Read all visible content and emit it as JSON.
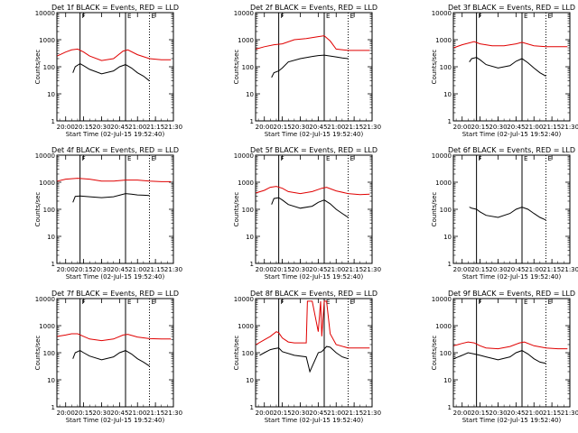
{
  "layout": {
    "rows": 3,
    "cols": 3
  },
  "colors": {
    "events": "#000000",
    "lld": "#e00000",
    "axes": "#000000",
    "background": "#ffffff"
  },
  "shared_axes": {
    "xlabel": "Start Time (02-Jul-15 19:52:40)",
    "ylabel": "Counts/sec",
    "x_tick_labels": [
      "20:00",
      "20:15",
      "20:30",
      "20:45",
      "21:00",
      "21:15",
      "21:30"
    ],
    "y_tick_labels": [
      "1",
      "10",
      "100",
      "1000",
      "10000"
    ],
    "y_scale": "log"
  },
  "chart_data": [
    {
      "type": "line",
      "title": "Det 1f BLACK = Events, RED = LLD",
      "xlim": [
        "19:52:40",
        "21:30:00"
      ],
      "ylim": [
        1,
        10000
      ],
      "markers": [
        {
          "time": "20:12",
          "label": "F",
          "style": "solid"
        },
        {
          "time": "20:50",
          "label": "E",
          "style": "solid"
        },
        {
          "time": "21:10",
          "label": "E",
          "style": "dotted"
        }
      ],
      "series": [
        {
          "name": "Events",
          "color": "#000000",
          "x": [
            "20:06",
            "20:08",
            "20:12",
            "20:15",
            "20:20",
            "20:30",
            "20:40",
            "20:45",
            "20:50",
            "20:55",
            "21:00",
            "21:05",
            "21:10"
          ],
          "y": [
            60,
            100,
            130,
            110,
            80,
            55,
            70,
            100,
            120,
            90,
            60,
            45,
            30
          ]
        },
        {
          "name": "LLD",
          "color": "#e00000",
          "x": [
            "19:53",
            "20:00",
            "20:05",
            "20:10",
            "20:15",
            "20:20",
            "20:30",
            "20:40",
            "20:48",
            "20:52",
            "21:00",
            "21:10",
            "21:20",
            "21:28"
          ],
          "y": [
            250,
            350,
            420,
            450,
            350,
            250,
            170,
            200,
            380,
            420,
            280,
            200,
            180,
            180
          ]
        }
      ]
    },
    {
      "type": "line",
      "title": "Det 2f BLACK = Events, RED = LLD",
      "xlim": [
        "19:52:40",
        "21:30:00"
      ],
      "ylim": [
        1,
        10000
      ],
      "markers": [
        {
          "time": "20:12",
          "label": "F",
          "style": "solid"
        },
        {
          "time": "20:50",
          "label": "E",
          "style": "solid"
        },
        {
          "time": "21:10",
          "label": "E",
          "style": "dotted"
        }
      ],
      "series": [
        {
          "name": "Events",
          "color": "#000000",
          "x": [
            "20:06",
            "20:08",
            "20:12",
            "20:15",
            "20:20",
            "20:30",
            "20:40",
            "20:45",
            "20:50",
            "20:55",
            "21:00",
            "21:05",
            "21:10"
          ],
          "y": [
            40,
            60,
            70,
            90,
            150,
            200,
            240,
            260,
            270,
            250,
            230,
            210,
            200
          ]
        },
        {
          "name": "LLD",
          "color": "#e00000",
          "x": [
            "19:53",
            "20:00",
            "20:08",
            "20:15",
            "20:25",
            "20:35",
            "20:45",
            "20:50",
            "20:55",
            "21:00",
            "21:10",
            "21:20",
            "21:28"
          ],
          "y": [
            450,
            550,
            650,
            700,
            1000,
            1100,
            1300,
            1400,
            900,
            450,
            400,
            400,
            400
          ]
        }
      ]
    },
    {
      "type": "line",
      "title": "Det 3f BLACK = Events, RED = LLD",
      "xlim": [
        "19:52:40",
        "21:30:00"
      ],
      "ylim": [
        1,
        10000
      ],
      "markers": [
        {
          "time": "20:12",
          "label": "F",
          "style": "solid"
        },
        {
          "time": "20:50",
          "label": "E",
          "style": "solid"
        },
        {
          "time": "21:10",
          "label": "E",
          "style": "dotted"
        }
      ],
      "series": [
        {
          "name": "Events",
          "color": "#000000",
          "x": [
            "20:06",
            "20:08",
            "20:12",
            "20:15",
            "20:20",
            "20:30",
            "20:40",
            "20:45",
            "20:50",
            "20:55",
            "21:00",
            "21:05",
            "21:10"
          ],
          "y": [
            150,
            200,
            220,
            180,
            120,
            90,
            110,
            160,
            200,
            140,
            90,
            60,
            45
          ]
        },
        {
          "name": "LLD",
          "color": "#e00000",
          "x": [
            "19:53",
            "20:00",
            "20:10",
            "20:15",
            "20:25",
            "20:35",
            "20:45",
            "20:50",
            "21:00",
            "21:10",
            "21:20",
            "21:28"
          ],
          "y": [
            500,
            650,
            850,
            700,
            600,
            600,
            700,
            800,
            600,
            550,
            550,
            550
          ]
        }
      ]
    },
    {
      "type": "line",
      "title": "Det 4f BLACK = Events, RED = LLD",
      "xlim": [
        "19:52:40",
        "21:30:00"
      ],
      "ylim": [
        1,
        10000
      ],
      "markers": [
        {
          "time": "20:12",
          "label": "F",
          "style": "solid"
        },
        {
          "time": "20:50",
          "label": "E",
          "style": "solid"
        },
        {
          "time": "21:10",
          "label": "E",
          "style": "dotted"
        }
      ],
      "series": [
        {
          "name": "Events",
          "color": "#000000",
          "x": [
            "20:06",
            "20:08",
            "20:12",
            "20:20",
            "20:30",
            "20:40",
            "20:45",
            "20:50",
            "20:55",
            "21:00",
            "21:05",
            "21:10"
          ],
          "y": [
            180,
            300,
            310,
            290,
            270,
            290,
            330,
            380,
            360,
            340,
            330,
            320
          ]
        },
        {
          "name": "LLD",
          "color": "#e00000",
          "x": [
            "19:53",
            "20:00",
            "20:10",
            "20:20",
            "20:30",
            "20:40",
            "20:50",
            "21:00",
            "21:10",
            "21:20",
            "21:28"
          ],
          "y": [
            1100,
            1300,
            1400,
            1300,
            1100,
            1100,
            1200,
            1200,
            1100,
            1050,
            1050
          ]
        }
      ]
    },
    {
      "type": "line",
      "title": "Det 5f BLACK = Events, RED = LLD",
      "xlim": [
        "19:52:40",
        "21:30:00"
      ],
      "ylim": [
        1,
        10000
      ],
      "markers": [
        {
          "time": "20:12",
          "label": "F",
          "style": "solid"
        },
        {
          "time": "20:50",
          "label": "E",
          "style": "solid"
        },
        {
          "time": "21:10",
          "label": "E",
          "style": "dotted"
        }
      ],
      "series": [
        {
          "name": "Events",
          "color": "#000000",
          "x": [
            "20:06",
            "20:08",
            "20:12",
            "20:15",
            "20:20",
            "20:30",
            "20:40",
            "20:45",
            "20:50",
            "20:55",
            "21:00",
            "21:05",
            "21:10"
          ],
          "y": [
            150,
            250,
            270,
            220,
            150,
            110,
            130,
            180,
            220,
            160,
            100,
            70,
            50
          ]
        },
        {
          "name": "LLD",
          "color": "#e00000",
          "x": [
            "19:53",
            "20:00",
            "20:05",
            "20:10",
            "20:15",
            "20:20",
            "20:30",
            "20:40",
            "20:48",
            "20:52",
            "21:00",
            "21:10",
            "21:20",
            "21:28"
          ],
          "y": [
            400,
            500,
            650,
            700,
            600,
            450,
            380,
            450,
            600,
            650,
            480,
            380,
            350,
            360
          ]
        }
      ]
    },
    {
      "type": "line",
      "title": "Det 6f BLACK = Events, RED = LLD",
      "xlim": [
        "19:52:40",
        "21:30:00"
      ],
      "ylim": [
        1,
        10000
      ],
      "markers": [
        {
          "time": "20:12",
          "label": "F",
          "style": "solid"
        },
        {
          "time": "20:50",
          "label": "E",
          "style": "solid"
        },
        {
          "time": "21:10",
          "label": "E",
          "style": "dotted"
        }
      ],
      "series": [
        {
          "name": "Events",
          "color": "#000000",
          "x": [
            "20:06",
            "20:08",
            "20:12",
            "20:15",
            "20:20",
            "20:30",
            "20:40",
            "20:45",
            "20:50",
            "20:55",
            "21:00",
            "21:05",
            "21:10"
          ],
          "y": [
            120,
            110,
            100,
            80,
            60,
            50,
            70,
            100,
            120,
            100,
            70,
            50,
            40
          ]
        }
      ]
    },
    {
      "type": "line",
      "title": "Det 7f BLACK = Events, RED = LLD",
      "xlim": [
        "19:52:40",
        "21:30:00"
      ],
      "ylim": [
        1,
        10000
      ],
      "markers": [
        {
          "time": "20:12",
          "label": "F",
          "style": "solid"
        },
        {
          "time": "20:50",
          "label": "E",
          "style": "solid"
        },
        {
          "time": "21:10",
          "label": "E",
          "style": "dotted"
        }
      ],
      "series": [
        {
          "name": "Events",
          "color": "#000000",
          "x": [
            "20:06",
            "20:08",
            "20:12",
            "20:15",
            "20:20",
            "20:30",
            "20:40",
            "20:45",
            "20:50",
            "20:55",
            "21:00",
            "21:05",
            "21:10"
          ],
          "y": [
            60,
            100,
            120,
            100,
            75,
            55,
            70,
            100,
            120,
            90,
            60,
            45,
            32
          ]
        },
        {
          "name": "LLD",
          "color": "#e00000",
          "x": [
            "19:53",
            "20:00",
            "20:05",
            "20:10",
            "20:15",
            "20:20",
            "20:30",
            "20:40",
            "20:48",
            "20:52",
            "21:00",
            "21:10",
            "21:20",
            "21:28"
          ],
          "y": [
            400,
            450,
            500,
            500,
            400,
            320,
            280,
            320,
            450,
            480,
            380,
            330,
            320,
            320
          ]
        }
      ]
    },
    {
      "type": "line",
      "title": "Det 8f BLACK = Events, RED = LLD",
      "xlim": [
        "19:52:40",
        "21:30:00"
      ],
      "ylim": [
        1,
        10000
      ],
      "markers": [
        {
          "time": "20:12",
          "label": "F",
          "style": "solid"
        },
        {
          "time": "20:50",
          "label": "E",
          "style": "solid"
        },
        {
          "time": "21:10",
          "label": "E",
          "style": "dotted"
        }
      ],
      "series": [
        {
          "name": "Events",
          "color": "#000000",
          "x": [
            "19:56",
            "20:00",
            "20:05",
            "20:08",
            "20:12",
            "20:15",
            "20:25",
            "20:35",
            "20:38",
            "20:45",
            "20:48",
            "20:52",
            "20:55",
            "21:00",
            "21:05",
            "21:10"
          ],
          "y": [
            80,
            100,
            130,
            140,
            150,
            110,
            80,
            70,
            20,
            100,
            110,
            170,
            160,
            100,
            70,
            60
          ]
        },
        {
          "name": "LLD",
          "color": "#e00000",
          "x": [
            "19:53",
            "20:00",
            "20:05",
            "20:10",
            "20:12",
            "20:15",
            "20:20",
            "20:25",
            "20:35",
            "20:36",
            "20:40",
            "20:45",
            "20:47",
            "20:48",
            "20:50",
            "20:52",
            "20:55",
            "21:00",
            "21:10",
            "21:20",
            "21:28"
          ],
          "y": [
            200,
            300,
            400,
            600,
            550,
            350,
            250,
            230,
            230,
            8000,
            8000,
            600,
            8000,
            400,
            8000,
            8000,
            500,
            200,
            150,
            150,
            150
          ]
        }
      ]
    },
    {
      "type": "line",
      "title": "Det 9f BLACK = Events, RED = LLD",
      "xlim": [
        "19:52:40",
        "21:30:00"
      ],
      "ylim": [
        1,
        10000
      ],
      "markers": [
        {
          "time": "20:12",
          "label": "F",
          "style": "solid"
        },
        {
          "time": "20:50",
          "label": "E",
          "style": "solid"
        },
        {
          "time": "21:10",
          "label": "E",
          "style": "dotted"
        }
      ],
      "series": [
        {
          "name": "Events",
          "color": "#000000",
          "x": [
            "19:53",
            "20:00",
            "20:05",
            "20:10",
            "20:15",
            "20:20",
            "20:30",
            "20:40",
            "20:45",
            "20:50",
            "20:55",
            "21:00",
            "21:05",
            "21:10"
          ],
          "y": [
            60,
            80,
            100,
            90,
            80,
            70,
            55,
            70,
            100,
            120,
            90,
            60,
            45,
            40
          ]
        },
        {
          "name": "LLD",
          "color": "#e00000",
          "x": [
            "19:53",
            "20:00",
            "20:05",
            "20:10",
            "20:15",
            "20:20",
            "20:30",
            "20:40",
            "20:48",
            "20:52",
            "21:00",
            "21:10",
            "21:20",
            "21:28"
          ],
          "y": [
            180,
            220,
            250,
            230,
            180,
            150,
            140,
            170,
            230,
            250,
            180,
            150,
            140,
            140
          ]
        }
      ]
    }
  ]
}
